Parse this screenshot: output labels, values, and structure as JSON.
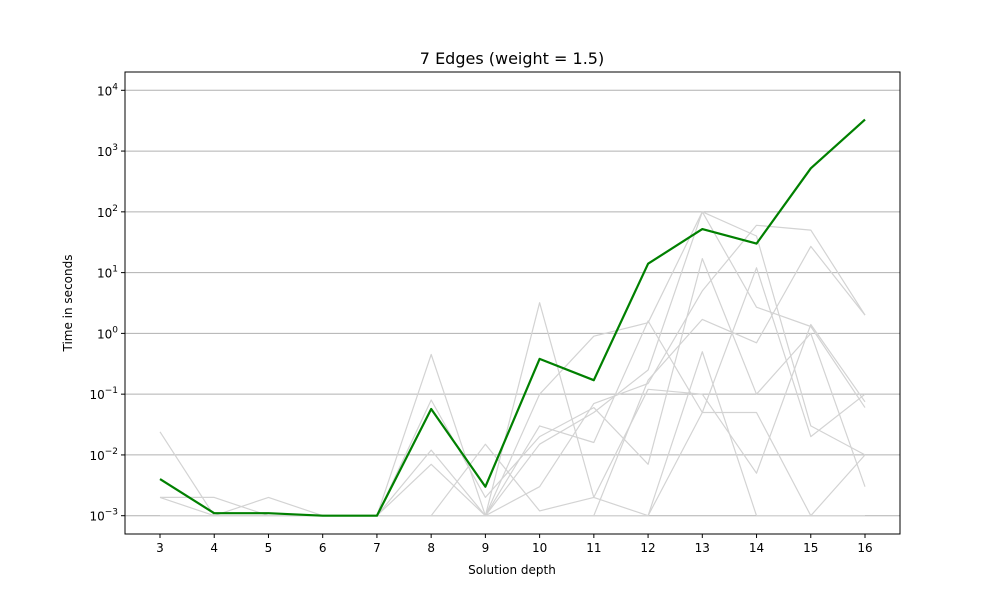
{
  "chart_data": {
    "type": "line",
    "title": "7 Edges (weight = 1.5)",
    "xlabel": "Solution depth",
    "ylabel": "Time in seconds",
    "yscale": "log",
    "ylim": [
      0.0005,
      20000
    ],
    "grid": "y",
    "legend": "none",
    "x": [
      3,
      4,
      5,
      6,
      7,
      8,
      9,
      10,
      11,
      12,
      13,
      14,
      15,
      16
    ],
    "y_ticks": [
      {
        "value": 0.001,
        "base": "10",
        "exp": "−3"
      },
      {
        "value": 0.01,
        "base": "10",
        "exp": "−2"
      },
      {
        "value": 0.1,
        "base": "10",
        "exp": "−1"
      },
      {
        "value": 1,
        "base": "10",
        "exp": "0"
      },
      {
        "value": 10,
        "base": "10",
        "exp": "1"
      },
      {
        "value": 100,
        "base": "10",
        "exp": "2"
      },
      {
        "value": 1000,
        "base": "10",
        "exp": "3"
      },
      {
        "value": 10000,
        "base": "10",
        "exp": "4"
      }
    ],
    "colors": {
      "highlight": "#008000",
      "background_series": "#d3d3d3",
      "grid": "#b0b0b0"
    },
    "series": [
      {
        "role": "background",
        "values": [
          0.024,
          0.001,
          0.001,
          0.001,
          0.001,
          0.45,
          0.001,
          3.2,
          0.002,
          0.12,
          0.1,
          0.005,
          1.4,
          0.075
        ]
      },
      {
        "role": "background",
        "values": [
          0.002,
          0.002,
          0.001,
          0.001,
          0.001,
          0.08,
          0.002,
          0.02,
          0.06,
          0.007,
          17,
          0.1,
          1,
          0.003
        ]
      },
      {
        "role": "background",
        "values": [
          0.002,
          0.001,
          0.002,
          0.001,
          0.001,
          0.012,
          0.001,
          0.1,
          0.9,
          1.5,
          100,
          2.7,
          1.3,
          0.06
        ]
      },
      {
        "role": "background",
        "values": [
          0.001,
          0.001,
          0.001,
          0.001,
          0.001,
          0.007,
          0.001,
          0.015,
          0.05,
          0.25,
          100,
          40,
          0.03,
          0.01
        ]
      },
      {
        "role": "background",
        "values": [
          0.001,
          0.001,
          0.001,
          0.001,
          0.001,
          0.001,
          0.015,
          0.0012,
          0.002,
          0.001,
          0.05,
          12,
          0.02,
          0.1
        ]
      },
      {
        "role": "background",
        "values": [
          0.001,
          0.001,
          0.001,
          0.001,
          0.001,
          0.001,
          0.001,
          0.03,
          0.016,
          1.6,
          0.05,
          0.05,
          0.001,
          0.01
        ]
      },
      {
        "role": "background",
        "values": [
          0.001,
          0.001,
          0.001,
          0.001,
          0.001,
          0.001,
          0.001,
          0.003,
          0.07,
          0.15,
          5,
          60,
          50,
          2
        ]
      },
      {
        "role": "background",
        "values": [
          0.001,
          0.001,
          0.001,
          0.001,
          0.001,
          0.001,
          0.001,
          0.001,
          0.001,
          0.17,
          1.7,
          0.7,
          27,
          2
        ]
      },
      {
        "role": "background",
        "values": [
          0.001,
          0.001,
          0.001,
          0.001,
          0.001,
          0.001,
          0.001,
          0.001,
          0.001,
          0.001,
          0.5,
          0.001,
          0.001,
          0.001
        ]
      },
      {
        "role": "highlight",
        "values": [
          0.004,
          0.0011,
          0.0011,
          0.001,
          0.001,
          0.057,
          0.003,
          0.38,
          0.17,
          14,
          52,
          30,
          520,
          3300
        ]
      }
    ]
  }
}
